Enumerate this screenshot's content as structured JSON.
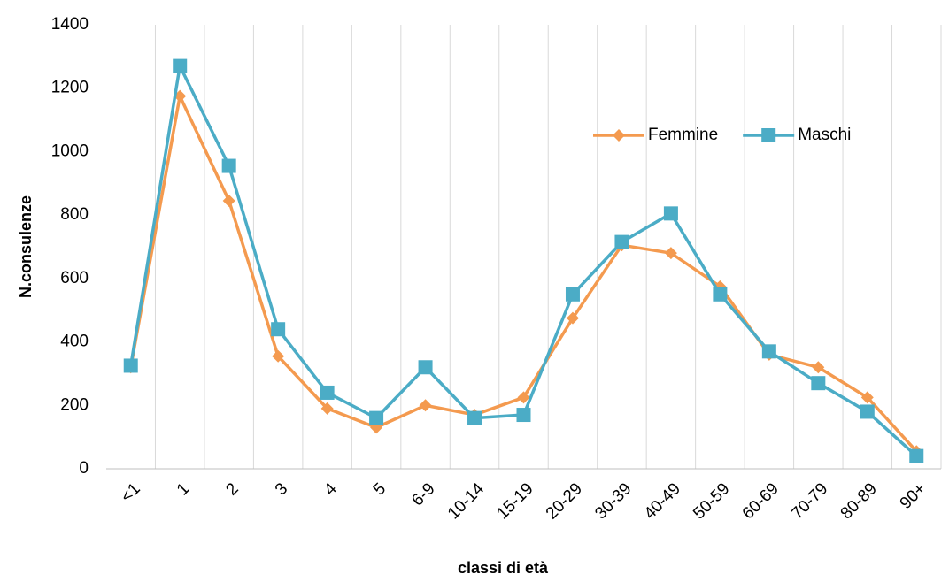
{
  "chart_data": {
    "type": "line",
    "x_label": "classi di età",
    "y_label": "N.consulenze",
    "categories": [
      "<1",
      "1",
      "2",
      "3",
      "4",
      "5",
      "6-9",
      "10-14",
      "15-19",
      "20-29",
      "30-39",
      "40-49",
      "50-59",
      "60-69",
      "70-79",
      "80-89",
      "90+"
    ],
    "series": [
      {
        "name": "Femmine",
        "color": "#f49a4f",
        "marker": "diamond",
        "values": [
          320,
          1175,
          845,
          355,
          190,
          130,
          200,
          170,
          225,
          475,
          705,
          680,
          575,
          360,
          320,
          225,
          55
        ]
      },
      {
        "name": "Maschi",
        "color": "#4bacc6",
        "marker": "square",
        "values": [
          325,
          1270,
          955,
          440,
          240,
          160,
          320,
          160,
          170,
          550,
          715,
          805,
          550,
          370,
          270,
          180,
          40
        ]
      }
    ],
    "ylim": [
      0,
      1400
    ],
    "yticks": [
      0,
      200,
      400,
      600,
      800,
      1000,
      1200,
      1400
    ],
    "grid": "x",
    "legend": "top-right"
  }
}
